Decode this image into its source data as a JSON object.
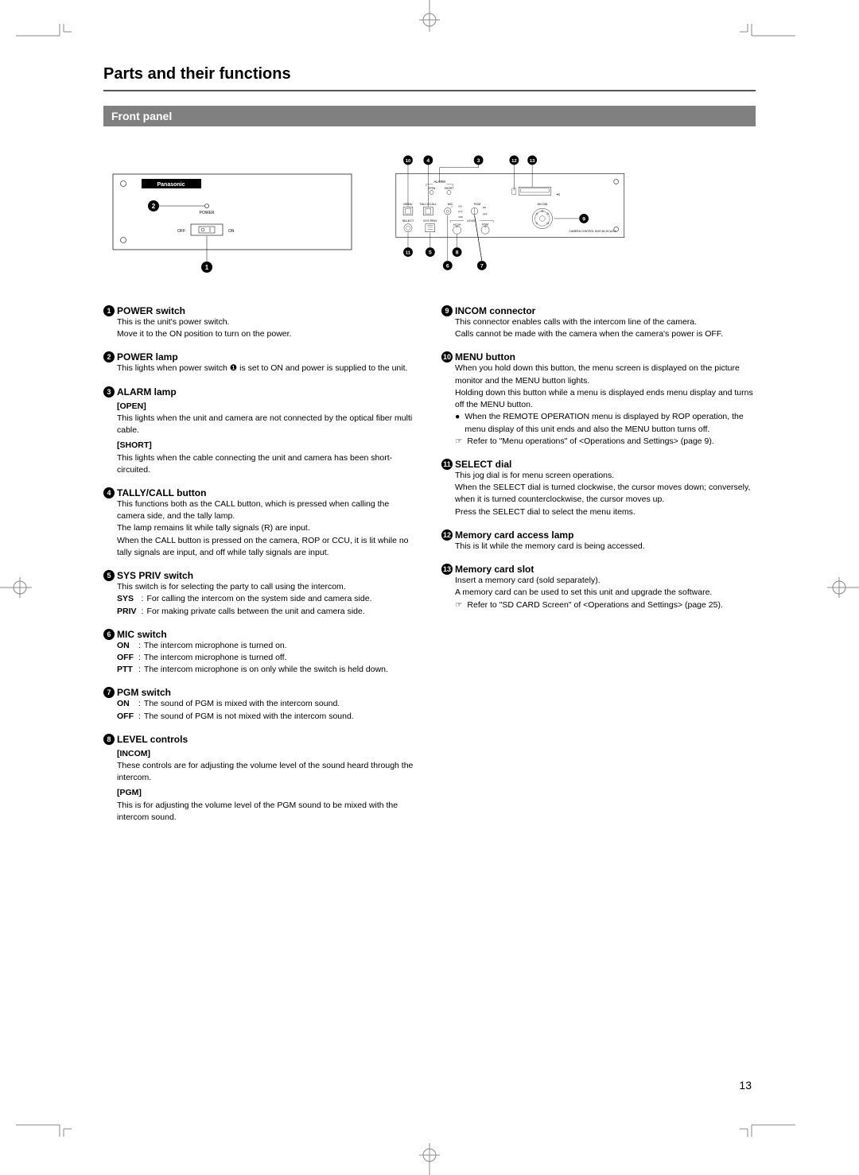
{
  "page_number": "13",
  "main_title": "Parts and their functions",
  "section_title": "Front panel",
  "brand_label": "Panasonic",
  "power_label": "POWER",
  "off_label": "OFF",
  "on_label": "ON",
  "diagram_labels": {
    "alarm": "ALARM",
    "open": "OPEN",
    "short": "SHORT",
    "menu": "MENU",
    "tally_call": "TALLY/CALL",
    "mic": "MIC",
    "pgm": "PGM",
    "incom": "INCOM",
    "on": "ON",
    "ptt": "PTT",
    "off": "OFF",
    "select": "SELECT",
    "sys_priv": "SYS  PRIV",
    "level": "LEVEL",
    "incom2": "INCOM",
    "pgm2": "PGM",
    "unit_model": "CAMERA CONTROL UNIT   AK-HCU200"
  },
  "callout_numbers": {
    "n1": "1",
    "n2": "2",
    "n3": "3",
    "n4": "4",
    "n5": "5",
    "n6": "6",
    "n7": "7",
    "n8": "8",
    "n9": "9",
    "n10": "10",
    "n11": "11",
    "n12": "12",
    "n13": "13"
  },
  "items_left": [
    {
      "num": "1",
      "title": "POWER switch",
      "body": [
        "This is the unit's power switch.",
        "Move it to the ON position to turn on the power."
      ]
    },
    {
      "num": "2",
      "title": "POWER lamp",
      "body": [
        "This lights when power switch ❶ is set to ON and power is supplied to the unit."
      ]
    },
    {
      "num": "3",
      "title": "ALARM lamp",
      "sub": [
        {
          "head": "[OPEN]",
          "text": "This lights when the unit and camera are not connected by the optical fiber multi cable."
        },
        {
          "head": "[SHORT]",
          "text": "This lights when the cable connecting the unit and camera has been short-circuited."
        }
      ]
    },
    {
      "num": "4",
      "title": "TALLY/CALL button",
      "body": [
        "This functions both as the CALL button, which is pressed when calling the camera side, and the tally lamp.",
        "The lamp remains lit while tally signals (R) are input.",
        "When the CALL button is pressed on the camera, ROP or CCU, it is lit while no tally signals are input, and off while tally signals are input."
      ]
    },
    {
      "num": "5",
      "title": "SYS PRIV switch",
      "body": [
        "This switch is for selecting the party to call using the intercom."
      ],
      "defs": [
        {
          "term": "SYS",
          "desc": "For calling the intercom on the system side and camera side."
        },
        {
          "term": "PRIV",
          "desc": "For making private calls between the unit and camera side."
        }
      ]
    },
    {
      "num": "6",
      "title": "MIC switch",
      "defs": [
        {
          "term": "ON",
          "desc": "The intercom microphone is turned on."
        },
        {
          "term": "OFF",
          "desc": "The intercom microphone is turned off."
        },
        {
          "term": "PTT",
          "desc": "The intercom microphone is on only while the switch is held down."
        }
      ]
    },
    {
      "num": "7",
      "title": "PGM switch",
      "defs": [
        {
          "term": "ON",
          "desc": "The sound of PGM is mixed with the intercom sound."
        },
        {
          "term": "OFF",
          "desc": "The sound of PGM is not mixed with the intercom sound."
        }
      ]
    },
    {
      "num": "8",
      "title": "LEVEL controls",
      "sub": [
        {
          "head": "[INCOM]",
          "text": "These controls are for adjusting the volume level of the sound heard through the intercom."
        },
        {
          "head": "[PGM]",
          "text": "This is for adjusting the volume level of the PGM sound to be mixed with the intercom sound."
        }
      ]
    }
  ],
  "items_right": [
    {
      "num": "9",
      "title": "INCOM connector",
      "body": [
        "This connector enables calls with the intercom line of the camera.",
        "Calls cannot be made with the camera when the camera's power is OFF."
      ]
    },
    {
      "num": "10",
      "title": "MENU button",
      "body": [
        "When you hold down this button, the menu screen is displayed on the picture monitor and the MENU button lights.",
        "Holding down this button while a menu is displayed ends menu display and turns off the MENU button."
      ],
      "notes": [
        {
          "sym": "●",
          "text": "When the REMOTE OPERATION menu is displayed by ROP operation, the menu display of this unit ends and also the MENU button turns off."
        },
        {
          "sym": "☞",
          "text": "Refer to \"Menu operations\" of <Operations and Settings> (page 9)."
        }
      ]
    },
    {
      "num": "11",
      "title": "SELECT dial",
      "body": [
        "This jog dial is for menu screen operations.",
        "When the SELECT dial is turned clockwise, the cursor moves down; conversely, when it is turned counterclockwise, the cursor moves up.",
        "Press the SELECT dial to select the menu items."
      ]
    },
    {
      "num": "12",
      "title": "Memory card access lamp",
      "body": [
        "This is lit while the memory card is being accessed."
      ]
    },
    {
      "num": "13",
      "title": "Memory card slot",
      "body": [
        "Insert a memory card (sold separately).",
        "A memory card can be used to set this unit and upgrade the software."
      ],
      "notes": [
        {
          "sym": "☞",
          "text": "Refer to \"SD CARD Screen\" of <Operations and Settings> (page 25)."
        }
      ]
    }
  ]
}
